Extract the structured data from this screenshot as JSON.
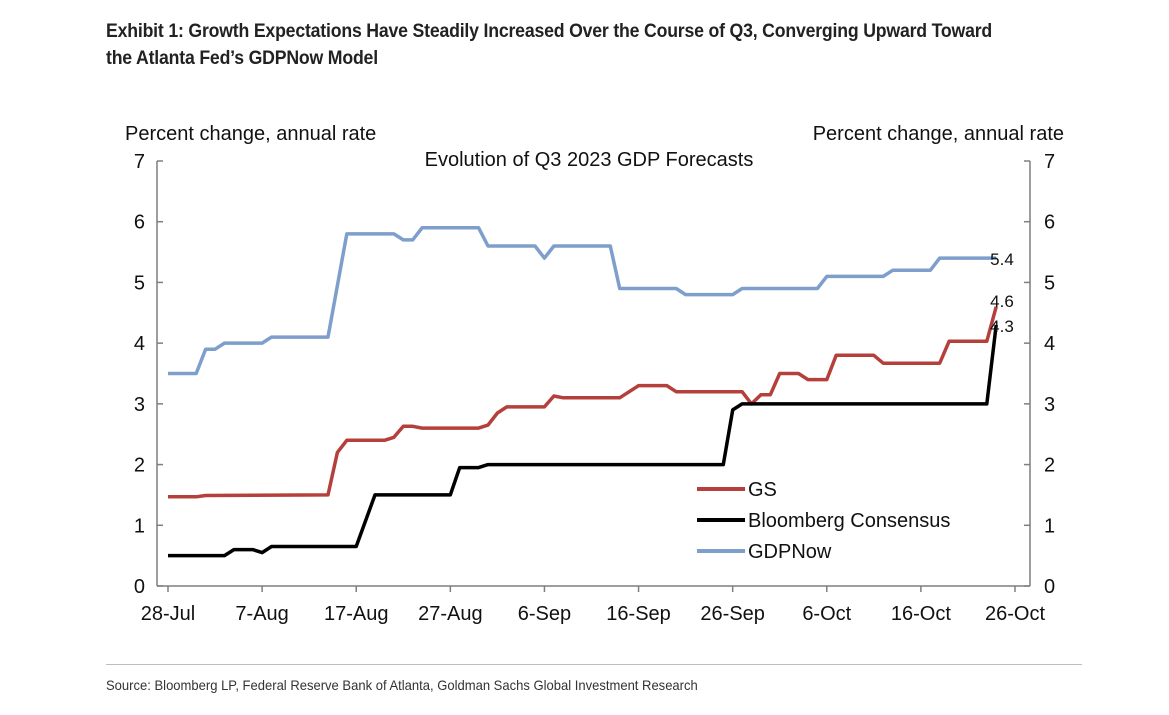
{
  "header": {
    "title": "Exhibit 1: Growth Expectations Have Steadily Increased Over the Course of Q3, Converging Upward Toward the Atlanta Fed’s GDPNow Model"
  },
  "footer": {
    "source": "Source: Bloomberg LP, Federal Reserve Bank of Atlanta, Goldman Sachs Global Investment Research"
  },
  "chart_data": {
    "type": "line",
    "title": "Evolution of Q3 2023 GDP Forecasts",
    "ylabel_left": "Percent change, annual rate",
    "ylabel_right": "Percent change, annual rate",
    "xlabel": "",
    "x_unit": "days since 28-Jul-2023",
    "xlim": [
      0,
      90
    ],
    "ylim": [
      0,
      7
    ],
    "y_ticks": [
      "0",
      "1",
      "2",
      "3",
      "4",
      "5",
      "6",
      "7"
    ],
    "x_ticks": [
      {
        "x": 0,
        "label": "28-Jul"
      },
      {
        "x": 10,
        "label": "7-Aug"
      },
      {
        "x": 20,
        "label": "17-Aug"
      },
      {
        "x": 30,
        "label": "27-Aug"
      },
      {
        "x": 40,
        "label": "6-Sep"
      },
      {
        "x": 50,
        "label": "16-Sep"
      },
      {
        "x": 60,
        "label": "26-Sep"
      },
      {
        "x": 70,
        "label": "6-Oct"
      },
      {
        "x": 80,
        "label": "16-Oct"
      },
      {
        "x": 90,
        "label": "26-Oct"
      }
    ],
    "grid": false,
    "legend_position": "bottom-right",
    "colors": {
      "GS": "#b5403b",
      "Bloomberg Consensus": "#000000",
      "GDPNow": "#7e9fcb",
      "axis": "#7f7f7f"
    },
    "series": [
      {
        "name": "GS",
        "end_label": "4.6",
        "points": [
          [
            0,
            1.47
          ],
          [
            3,
            1.47
          ],
          [
            4,
            1.49
          ],
          [
            17,
            1.5
          ],
          [
            18,
            2.2
          ],
          [
            19,
            2.4
          ],
          [
            23,
            2.4
          ],
          [
            24,
            2.45
          ],
          [
            25,
            2.63
          ],
          [
            26,
            2.63
          ],
          [
            27,
            2.6
          ],
          [
            33,
            2.6
          ],
          [
            34,
            2.65
          ],
          [
            35,
            2.85
          ],
          [
            36,
            2.95
          ],
          [
            40,
            2.95
          ],
          [
            41,
            3.13
          ],
          [
            42,
            3.1
          ],
          [
            48,
            3.1
          ],
          [
            50,
            3.3
          ],
          [
            53,
            3.3
          ],
          [
            54,
            3.2
          ],
          [
            61,
            3.2
          ],
          [
            62,
            3.0
          ],
          [
            63,
            3.15
          ],
          [
            64,
            3.15
          ],
          [
            65,
            3.5
          ],
          [
            67,
            3.5
          ],
          [
            68,
            3.4
          ],
          [
            70,
            3.4
          ],
          [
            71,
            3.8
          ],
          [
            75,
            3.8
          ],
          [
            76,
            3.67
          ],
          [
            82,
            3.67
          ],
          [
            83,
            4.03
          ],
          [
            87,
            4.03
          ],
          [
            88,
            4.6
          ]
        ]
      },
      {
        "name": "Bloomberg Consensus",
        "end_label": "4.3",
        "points": [
          [
            0,
            0.5
          ],
          [
            6,
            0.5
          ],
          [
            7,
            0.6
          ],
          [
            9,
            0.6
          ],
          [
            10,
            0.55
          ],
          [
            11,
            0.65
          ],
          [
            20,
            0.65
          ],
          [
            22,
            1.5
          ],
          [
            30,
            1.5
          ],
          [
            31,
            1.95
          ],
          [
            33,
            1.95
          ],
          [
            34,
            2.0
          ],
          [
            59,
            2.0
          ],
          [
            60,
            2.9
          ],
          [
            61,
            3.0
          ],
          [
            87,
            3.0
          ],
          [
            88,
            4.3
          ]
        ]
      },
      {
        "name": "GDPNow",
        "end_label": "5.4",
        "points": [
          [
            0,
            3.5
          ],
          [
            3,
            3.5
          ],
          [
            4,
            3.9
          ],
          [
            5,
            3.9
          ],
          [
            6,
            4.0
          ],
          [
            10,
            4.0
          ],
          [
            11,
            4.1
          ],
          [
            17,
            4.1
          ],
          [
            19,
            5.8
          ],
          [
            24,
            5.8
          ],
          [
            25,
            5.7
          ],
          [
            26,
            5.7
          ],
          [
            27,
            5.9
          ],
          [
            33,
            5.9
          ],
          [
            34,
            5.6
          ],
          [
            39,
            5.6
          ],
          [
            40,
            5.4
          ],
          [
            41,
            5.6
          ],
          [
            47,
            5.6
          ],
          [
            48,
            4.9
          ],
          [
            54,
            4.9
          ],
          [
            55,
            4.8
          ],
          [
            60,
            4.8
          ],
          [
            61,
            4.9
          ],
          [
            69,
            4.9
          ],
          [
            70,
            5.1
          ],
          [
            76,
            5.1
          ],
          [
            77,
            5.2
          ],
          [
            81,
            5.2
          ],
          [
            82,
            5.4
          ],
          [
            88,
            5.4
          ]
        ]
      }
    ]
  }
}
